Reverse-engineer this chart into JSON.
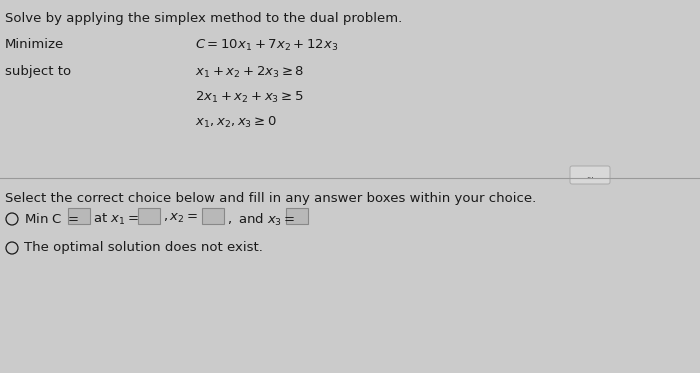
{
  "bg_color": "#cbcbcb",
  "text_color": "#1a1a1a",
  "line_color": "#999999",
  "title": "Solve by applying the simplex method to the dual problem.",
  "minimize_label": "Minimize",
  "subject_label": "subject to",
  "objective": "$C = 10x_1 + 7x_2 + 12x_3$",
  "constraint1": "$x_1 + x_2 + 2x_3 \\geq 8$",
  "constraint2": "$2x_1 + x_2 + x_3 \\geq 5$",
  "constraint3": "$x_1, x_2, x_3 \\geq 0$",
  "select_text": "Select the correct choice below and fill in any answer boxes within your choice.",
  "choice_A_pre": "$\\text{Min C} =$",
  "choice_A_mid": "$\\text{at } x_1 =$",
  "choice_A_x2": "$, x_2 =$",
  "choice_A_x3": "$, \\text{ and } x_3 =$",
  "choice_B": "The optimal solution does not exist.",
  "box_facecolor": "#b8b8b8",
  "box_edgecolor": "#888888",
  "font_size": 9.5,
  "font_size_title": 9.5
}
